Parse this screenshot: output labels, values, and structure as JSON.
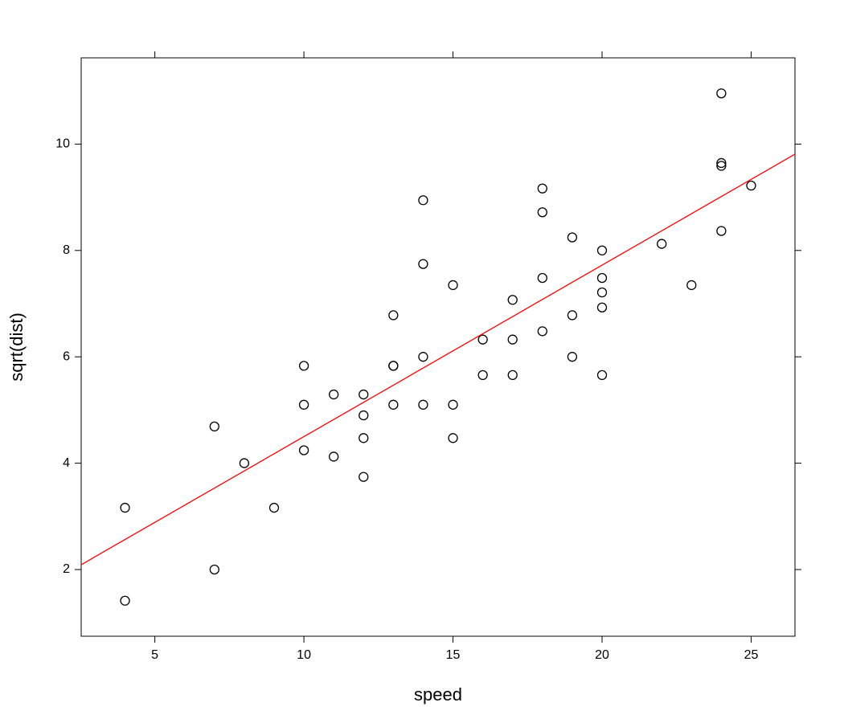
{
  "chart_data": {
    "type": "scatter",
    "x_label": "speed",
    "y_label": "sqrt(dist)",
    "series": [
      {
        "color": "#000000",
        "x": [
          4,
          4,
          7,
          7,
          8,
          9,
          10,
          10,
          10,
          11,
          11,
          12,
          12,
          12,
          12,
          13,
          13,
          13,
          13,
          14,
          14,
          14,
          14,
          15,
          15,
          15,
          16,
          16,
          17,
          17,
          17,
          18,
          18,
          18,
          18,
          19,
          19,
          19,
          20,
          20,
          20,
          20,
          20,
          22,
          23,
          24,
          24,
          24,
          24,
          25
        ],
        "values": [
          1.414,
          3.162,
          2,
          4.69,
          4,
          3.162,
          4.243,
          5.099,
          5.831,
          4.123,
          5.292,
          3.742,
          4.472,
          4.899,
          5.292,
          5.099,
          5.831,
          5.831,
          6.782,
          5.099,
          6,
          7.746,
          8.944,
          4.472,
          5.099,
          7.348,
          5.657,
          6.325,
          5.657,
          6.325,
          7.071,
          6.481,
          7.483,
          8.718,
          9.165,
          6,
          6.782,
          8.246,
          5.657,
          6.928,
          7.211,
          7.483,
          8,
          8.124,
          7.348,
          8.367,
          9.592,
          9.644,
          10.954,
          9.22
        ]
      }
    ],
    "fit_line": {
      "color": "#ff0000",
      "x": [
        2.53,
        26.47
      ],
      "values": [
        2.09,
        9.81
      ]
    },
    "xlim": [
      2.53,
      26.47
    ],
    "xticks": [
      5,
      10,
      15,
      20,
      25
    ],
    "ylim": [
      0.746,
      11.622
    ],
    "yticks": [
      2,
      4,
      6,
      8,
      10
    ]
  }
}
